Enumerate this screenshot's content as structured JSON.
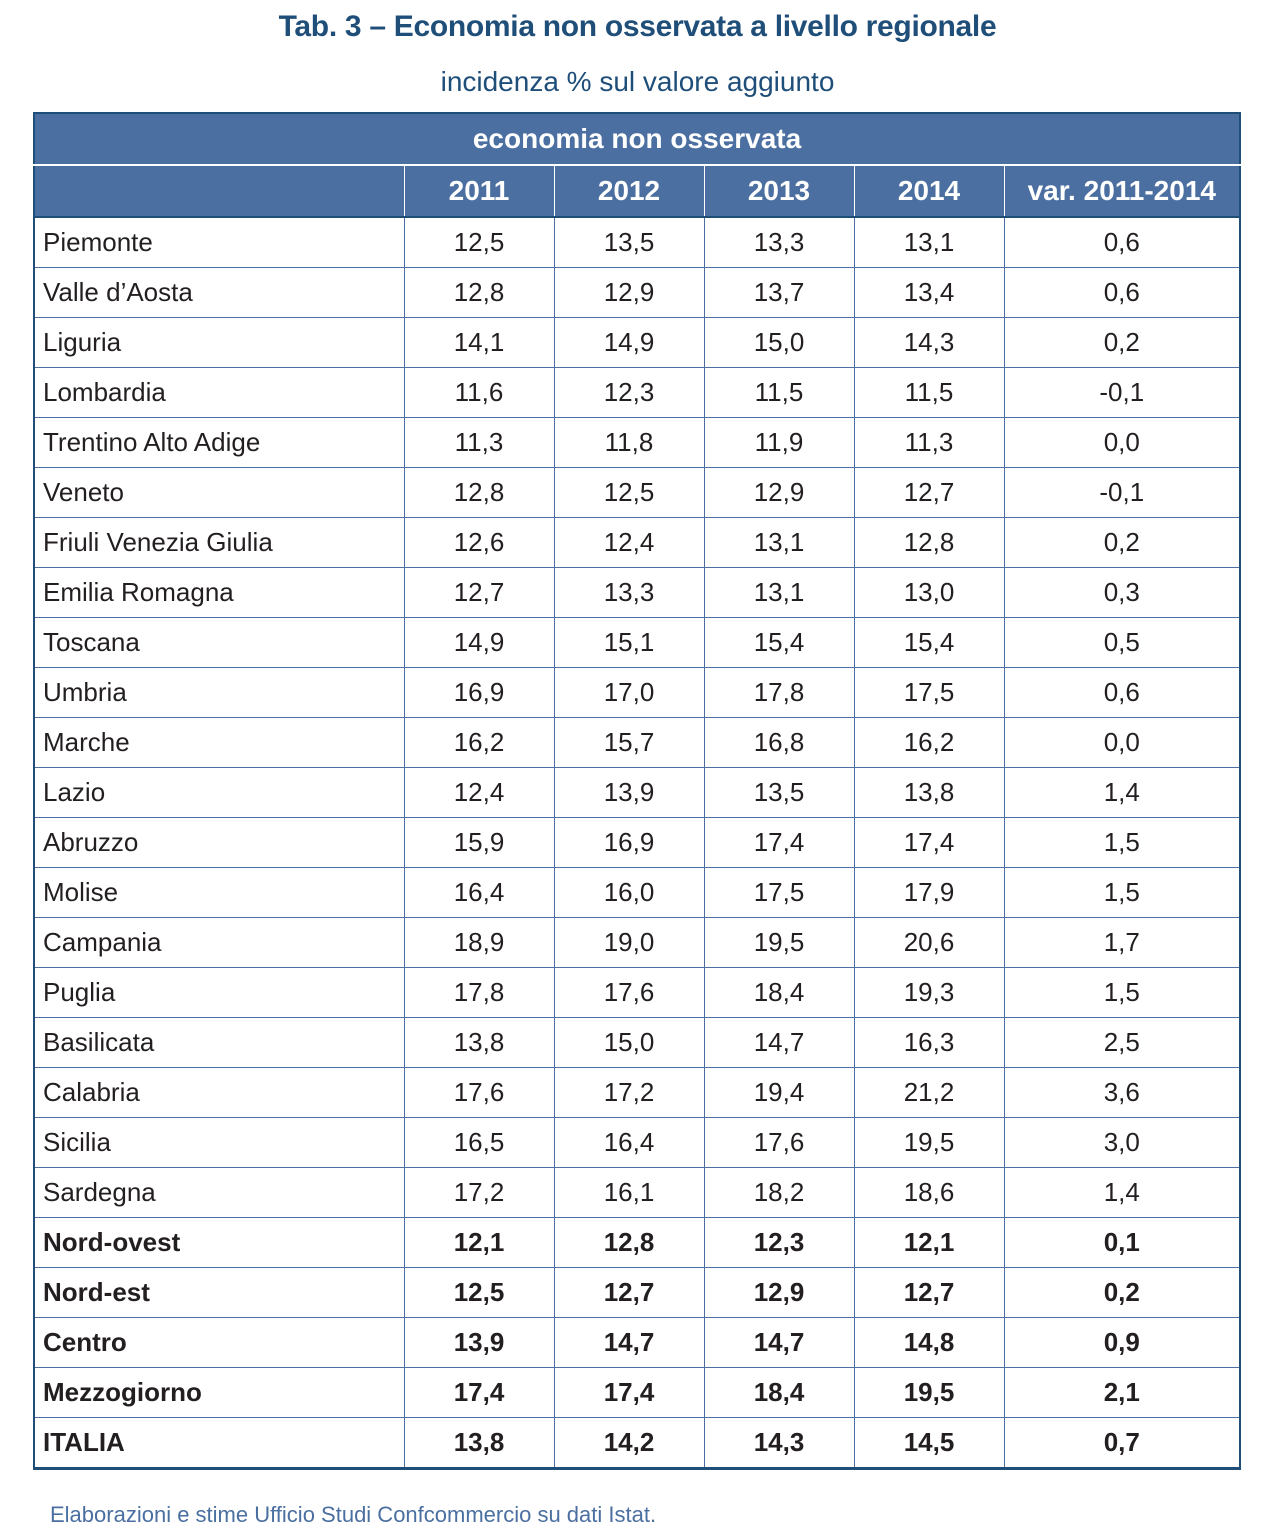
{
  "title": "Tab. 3 – Economia non osservata a livello regionale",
  "subtitle": "incidenza % sul valore aggiunto",
  "table": {
    "group_header": "economia non osservata",
    "columns": [
      "",
      "2011",
      "2012",
      "2013",
      "2014",
      "var. 2011-2014"
    ],
    "rows": [
      {
        "region": "Piemonte",
        "values": [
          "12,5",
          "13,5",
          "13,3",
          "13,1",
          "0,6"
        ],
        "bold": false
      },
      {
        "region": "Valle d’Aosta",
        "values": [
          "12,8",
          "12,9",
          "13,7",
          "13,4",
          "0,6"
        ],
        "bold": false
      },
      {
        "region": "Liguria",
        "values": [
          "14,1",
          "14,9",
          "15,0",
          "14,3",
          "0,2"
        ],
        "bold": false
      },
      {
        "region": "Lombardia",
        "values": [
          "11,6",
          "12,3",
          "11,5",
          "11,5",
          "-0,1"
        ],
        "bold": false
      },
      {
        "region": "Trentino Alto Adige",
        "values": [
          "11,3",
          "11,8",
          "11,9",
          "11,3",
          "0,0"
        ],
        "bold": false
      },
      {
        "region": "Veneto",
        "values": [
          "12,8",
          "12,5",
          "12,9",
          "12,7",
          "-0,1"
        ],
        "bold": false
      },
      {
        "region": "Friuli Venezia Giulia",
        "values": [
          "12,6",
          "12,4",
          "13,1",
          "12,8",
          "0,2"
        ],
        "bold": false
      },
      {
        "region": "Emilia Romagna",
        "values": [
          "12,7",
          "13,3",
          "13,1",
          "13,0",
          "0,3"
        ],
        "bold": false
      },
      {
        "region": "Toscana",
        "values": [
          "14,9",
          "15,1",
          "15,4",
          "15,4",
          "0,5"
        ],
        "bold": false
      },
      {
        "region": "Umbria",
        "values": [
          "16,9",
          "17,0",
          "17,8",
          "17,5",
          "0,6"
        ],
        "bold": false
      },
      {
        "region": "Marche",
        "values": [
          "16,2",
          "15,7",
          "16,8",
          "16,2",
          "0,0"
        ],
        "bold": false
      },
      {
        "region": "Lazio",
        "values": [
          "12,4",
          "13,9",
          "13,5",
          "13,8",
          "1,4"
        ],
        "bold": false
      },
      {
        "region": "Abruzzo",
        "values": [
          "15,9",
          "16,9",
          "17,4",
          "17,4",
          "1,5"
        ],
        "bold": false
      },
      {
        "region": "Molise",
        "values": [
          "16,4",
          "16,0",
          "17,5",
          "17,9",
          "1,5"
        ],
        "bold": false
      },
      {
        "region": "Campania",
        "values": [
          "18,9",
          "19,0",
          "19,5",
          "20,6",
          "1,7"
        ],
        "bold": false
      },
      {
        "region": "Puglia",
        "values": [
          "17,8",
          "17,6",
          "18,4",
          "19,3",
          "1,5"
        ],
        "bold": false
      },
      {
        "region": "Basilicata",
        "values": [
          "13,8",
          "15,0",
          "14,7",
          "16,3",
          "2,5"
        ],
        "bold": false
      },
      {
        "region": "Calabria",
        "values": [
          "17,6",
          "17,2",
          "19,4",
          "21,2",
          "3,6"
        ],
        "bold": false
      },
      {
        "region": "Sicilia",
        "values": [
          "16,5",
          "16,4",
          "17,6",
          "19,5",
          "3,0"
        ],
        "bold": false
      },
      {
        "region": "Sardegna",
        "values": [
          "17,2",
          "16,1",
          "18,2",
          "18,6",
          "1,4"
        ],
        "bold": false
      },
      {
        "region": "Nord-ovest",
        "values": [
          "12,1",
          "12,8",
          "12,3",
          "12,1",
          "0,1"
        ],
        "bold": true
      },
      {
        "region": "Nord-est",
        "values": [
          "12,5",
          "12,7",
          "12,9",
          "12,7",
          "0,2"
        ],
        "bold": true
      },
      {
        "region": "Centro",
        "values": [
          "13,9",
          "14,7",
          "14,7",
          "14,8",
          "0,9"
        ],
        "bold": true
      },
      {
        "region": "Mezzogiorno",
        "values": [
          "17,4",
          "17,4",
          "18,4",
          "19,5",
          "2,1"
        ],
        "bold": true
      },
      {
        "region": "ITALIA",
        "values": [
          "13,8",
          "14,2",
          "14,3",
          "14,5",
          "0,7"
        ],
        "bold": true
      }
    ]
  },
  "source": "Elaborazioni e stime Ufficio Studi Confcommercio su dati Istat.",
  "colors": {
    "title": "#1f4e79",
    "header_bg": "#4b6fa0",
    "border": "#1f4e79"
  }
}
